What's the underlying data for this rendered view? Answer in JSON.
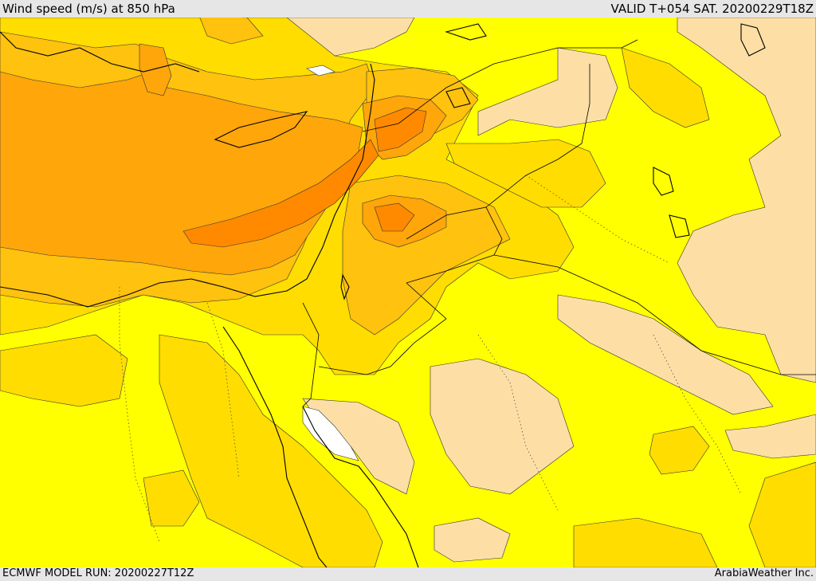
{
  "header": {
    "title": "Wind speed (m/s) at 850 hPa",
    "valid": "VALID T+054 SAT. 20200229T18Z"
  },
  "footer": {
    "model_run": "ECMWF MODEL RUN: 20200227T12Z",
    "credit": "ArabiaWeather Inc."
  },
  "map": {
    "colors": {
      "pale": "#fddfa6",
      "yellow": "#ffff00",
      "gold": "#ffdd00",
      "light_orange": "#ffc20e",
      "orange": "#ffa60a",
      "dark_orange": "#ff8a00",
      "sea_low": "#ffffff"
    }
  }
}
